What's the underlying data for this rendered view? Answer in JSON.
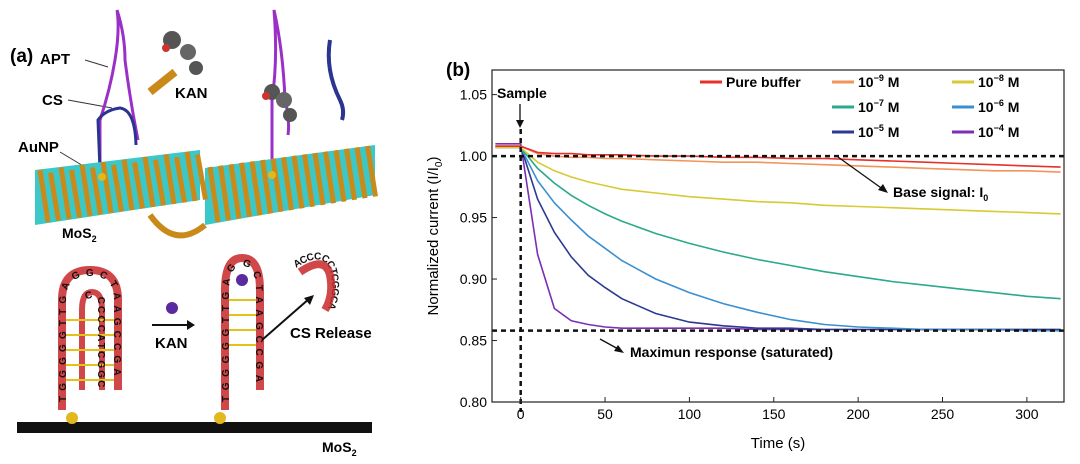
{
  "panel_a": {
    "label": "(a)",
    "apt": "APT",
    "cs": "CS",
    "kan_top": "KAN",
    "aunp": "AuNP",
    "mos2_top": "MoS",
    "mos2_sub": "2",
    "kan_arrow": "KAN",
    "cs_release": "CS Release",
    "mos2_bottom": "MoS",
    "mos2_bottom_sub": "2",
    "seq_left": "TGGGGGTTGAGGCTAAGCCGA",
    "seq_inner": "CCCCCATCGGC",
    "seq_mid": "TGGGGGTTGAGGCTAAGCCGA",
    "seq_release": "ACCCCCTCGGCA",
    "colors": {
      "apt": "#9b30c8",
      "cs": "#2b3590",
      "mos2_s": "#c98a1a",
      "mos2_mo": "#3cc8c8",
      "strand": "#c8282a",
      "aunp": "#e3b81c"
    }
  },
  "chart_data": {
    "type": "line",
    "panel_label": "(b)",
    "xlabel": "Time (s)",
    "ylabel": "Normalized current (I/I",
    "ylabel_sub": "0",
    "ylabel_end": ")",
    "xlim": [
      -17,
      322
    ],
    "ylim": [
      0.8,
      1.07
    ],
    "xticks": [
      0,
      50,
      100,
      150,
      200,
      250,
      300
    ],
    "yticks": [
      "0.80",
      "0.85",
      "0.90",
      "0.95",
      "1.00",
      "1.05"
    ],
    "grid": false,
    "legend_position": "top-right",
    "x": [
      -15,
      0,
      10,
      20,
      30,
      40,
      50,
      60,
      80,
      100,
      120,
      140,
      160,
      180,
      200,
      220,
      240,
      260,
      280,
      300,
      320
    ],
    "series": [
      {
        "name": "Pure buffer",
        "sup": "",
        "color": "#e8302a",
        "values": [
          1.008,
          1.008,
          1.003,
          1.002,
          1.002,
          1.001,
          1.001,
          1.001,
          1.0,
          1.0,
          0.999,
          0.999,
          0.998,
          0.998,
          0.997,
          0.996,
          0.995,
          0.994,
          0.993,
          0.992,
          0.991
        ]
      },
      {
        "name": "10",
        "sup": "−9",
        "unit": " M",
        "color": "#f0965a",
        "values": [
          1.008,
          1.008,
          1.002,
          1.0,
          0.999,
          0.999,
          0.998,
          0.998,
          0.997,
          0.996,
          0.995,
          0.995,
          0.994,
          0.993,
          0.992,
          0.991,
          0.99,
          0.989,
          0.988,
          0.988,
          0.987
        ]
      },
      {
        "name": "10",
        "sup": "−8",
        "unit": " M",
        "color": "#d9c934",
        "values": [
          1.007,
          1.007,
          0.995,
          0.988,
          0.983,
          0.979,
          0.976,
          0.973,
          0.97,
          0.967,
          0.965,
          0.963,
          0.962,
          0.96,
          0.959,
          0.958,
          0.957,
          0.956,
          0.955,
          0.954,
          0.953
        ]
      },
      {
        "name": "10",
        "sup": "−7",
        "unit": " M",
        "color": "#2aaa8a",
        "values": [
          1.007,
          1.007,
          0.99,
          0.978,
          0.968,
          0.96,
          0.953,
          0.947,
          0.937,
          0.929,
          0.922,
          0.916,
          0.911,
          0.906,
          0.902,
          0.898,
          0.895,
          0.892,
          0.889,
          0.886,
          0.884
        ]
      },
      {
        "name": "10",
        "sup": "−6",
        "unit": " M",
        "color": "#3b8fd0",
        "values": [
          1.007,
          1.007,
          0.98,
          0.962,
          0.948,
          0.935,
          0.925,
          0.915,
          0.9,
          0.889,
          0.88,
          0.873,
          0.867,
          0.863,
          0.861,
          0.86,
          0.859,
          0.859,
          0.859,
          0.858,
          0.858
        ]
      },
      {
        "name": "10",
        "sup": "−5",
        "unit": " M",
        "color": "#2b3990",
        "values": [
          1.008,
          1.008,
          0.965,
          0.938,
          0.918,
          0.903,
          0.893,
          0.884,
          0.872,
          0.865,
          0.862,
          0.86,
          0.86,
          0.859,
          0.859,
          0.859,
          0.859,
          0.859,
          0.859,
          0.859,
          0.859
        ]
      },
      {
        "name": "10",
        "sup": "−4",
        "unit": " M",
        "color": "#7b2fb5",
        "values": [
          1.01,
          1.01,
          0.92,
          0.876,
          0.866,
          0.863,
          0.861,
          0.86,
          0.86,
          0.86,
          0.86,
          0.859,
          0.859,
          0.859,
          0.859,
          0.859,
          0.859,
          0.859,
          0.859,
          0.859,
          0.859
        ]
      }
    ],
    "annotations": {
      "sample": "Sample",
      "base_signal": "Base signal: I",
      "base_sub": "0",
      "base_level": 1.0,
      "max_response": "Maximun response (saturated)",
      "max_level": 0.858,
      "sample_time": 0
    }
  }
}
